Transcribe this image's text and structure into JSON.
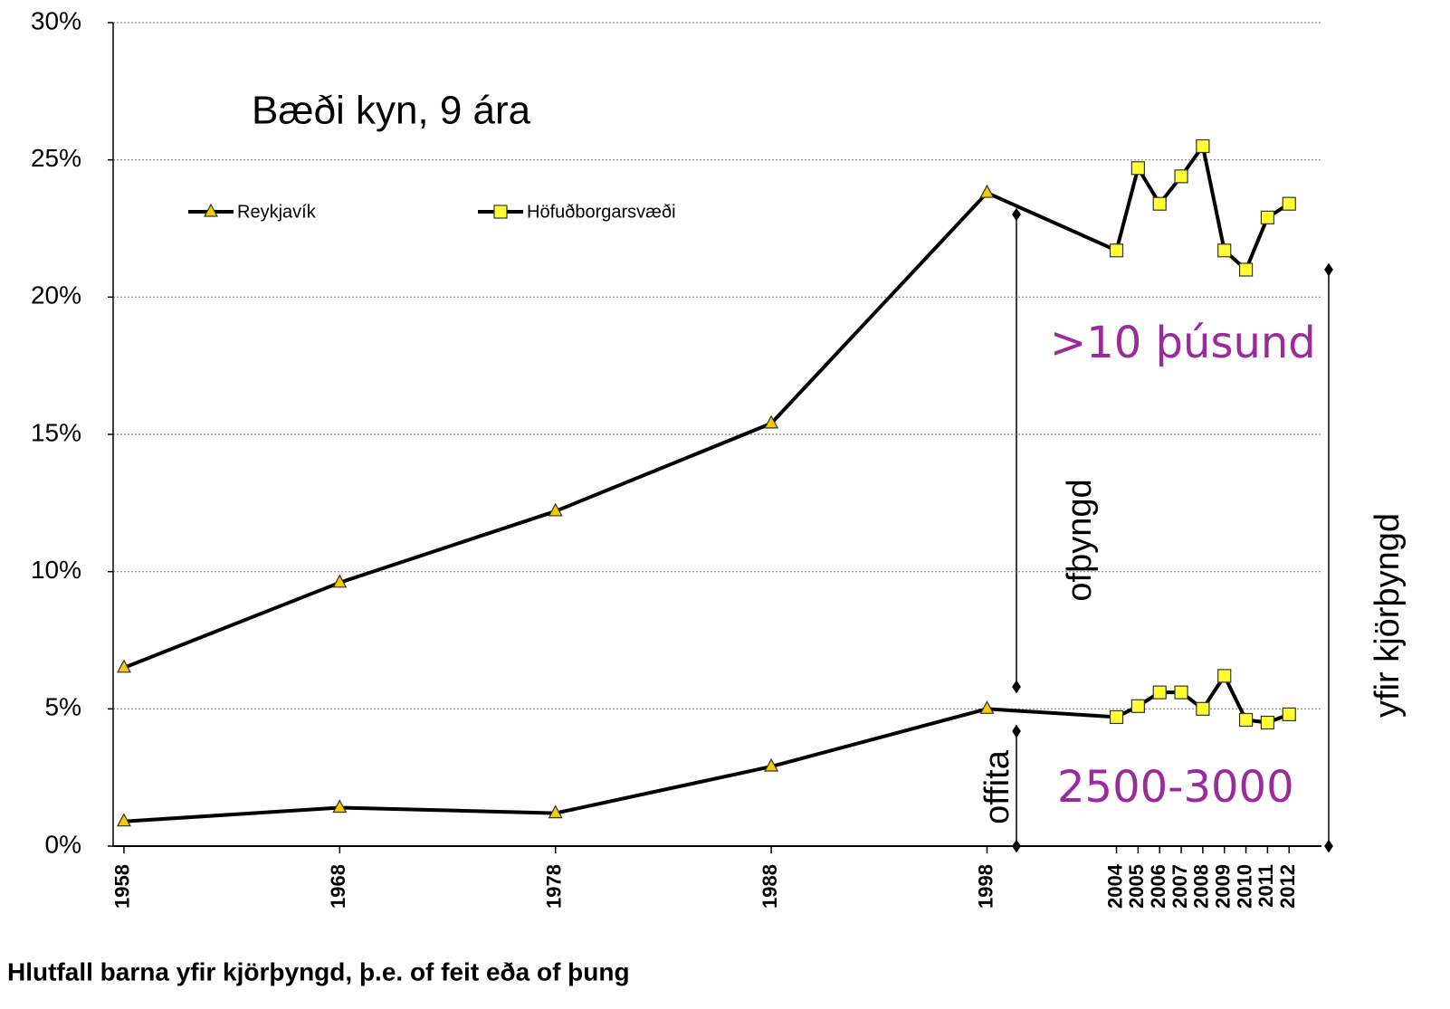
{
  "chart_data": {
    "type": "line",
    "title": "Bæði kyn, 9 ára",
    "caption": "Hlutfall barna yfir kjörþyngd, þ.e. of feit eða of þung",
    "annotations": [
      ">10 þúsund",
      "2500-3000",
      "ofþyngd",
      "offita",
      "yfir kjörþyngd"
    ],
    "series": [
      {
        "name": "Reykjavík",
        "color": "#000000",
        "marker": "triangle",
        "marker_color": "#f2cc00",
        "join_next": true,
        "x": [
          1958,
          1968,
          1978,
          1988,
          1998
        ],
        "values": [
          6.5,
          9.6,
          12.2,
          15.4,
          23.8
        ]
      },
      {
        "name": "Höfuðborgarsvæði",
        "color": "#000000",
        "marker": "square",
        "marker_color": "#ffff33",
        "x": [
          2004,
          2005,
          2006,
          2007,
          2008,
          2009,
          2010,
          2011,
          2012
        ],
        "values": [
          21.7,
          24.7,
          23.4,
          24.4,
          25.5,
          21.7,
          21.0,
          22.9,
          23.4
        ]
      },
      {
        "color": "#000000",
        "marker": "triangle",
        "marker_color": "#f2cc00",
        "join_next": true,
        "x": [
          1958,
          1968,
          1978,
          1988,
          1998
        ],
        "values": [
          0.9,
          1.4,
          1.2,
          2.9,
          5.0
        ]
      },
      {
        "color": "#000000",
        "marker": "square",
        "marker_color": "#ffff33",
        "x": [
          2004,
          2005,
          2006,
          2007,
          2008,
          2009,
          2010,
          2011,
          2012
        ],
        "values": [
          4.7,
          5.1,
          5.6,
          5.6,
          5.0,
          6.2,
          4.6,
          4.5,
          4.8
        ]
      }
    ],
    "xlim": [
      1957.5,
      2013.5
    ],
    "xticks": [
      1958,
      1968,
      1978,
      1988,
      1998,
      2004,
      2005,
      2006,
      2007,
      2008,
      2009,
      2010,
      2011,
      2012
    ],
    "ylim": [
      0,
      30
    ],
    "yticks": [
      {
        "value": 0,
        "label": "0%"
      },
      {
        "value": 5,
        "label": "5%"
      },
      {
        "value": 10,
        "label": "10%"
      },
      {
        "value": 15,
        "label": "15%"
      },
      {
        "value": 20,
        "label": "20%"
      },
      {
        "value": 25,
        "label": "25%"
      },
      {
        "value": 30,
        "label": "30%"
      }
    ],
    "grid": true
  }
}
